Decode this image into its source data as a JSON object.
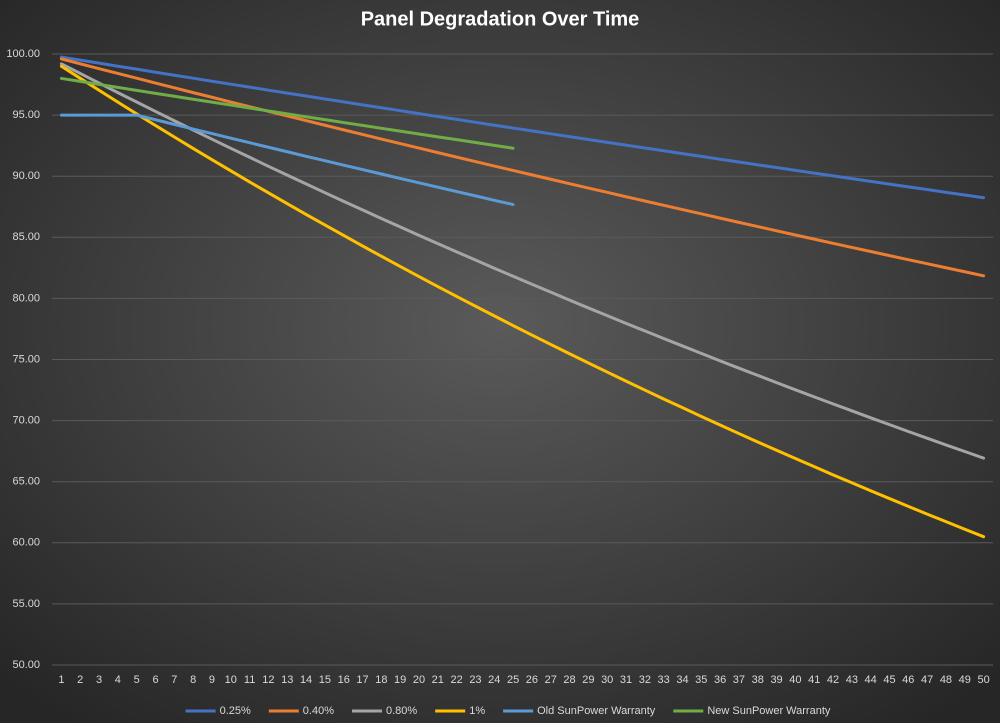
{
  "chart_data": {
    "type": "line",
    "title": "Panel Degradation Over Time",
    "categories": [
      1,
      2,
      3,
      4,
      5,
      6,
      7,
      8,
      9,
      10,
      11,
      12,
      13,
      14,
      15,
      16,
      17,
      18,
      19,
      20,
      21,
      22,
      23,
      24,
      25,
      26,
      27,
      28,
      29,
      30,
      31,
      32,
      33,
      34,
      35,
      36,
      37,
      38,
      39,
      40,
      41,
      42,
      43,
      44,
      45,
      46,
      47,
      48,
      49,
      50
    ],
    "ylim": [
      50,
      100
    ],
    "yticks": [
      {
        "value": 50,
        "label": "50.00"
      },
      {
        "value": 55,
        "label": "55.00"
      },
      {
        "value": 60,
        "label": "60.00"
      },
      {
        "value": 65,
        "label": "65.00"
      },
      {
        "value": 70,
        "label": "70.00"
      },
      {
        "value": 75,
        "label": "75.00"
      },
      {
        "value": 80,
        "label": "80.00"
      },
      {
        "value": 85,
        "label": "85.00"
      },
      {
        "value": 90,
        "label": "90.00"
      },
      {
        "value": 95,
        "label": "95.00"
      },
      {
        "value": 100,
        "label": "100.00"
      }
    ],
    "grid": true,
    "legend": "bottom",
    "series": [
      {
        "name": "0.25%",
        "color": "#4472c4",
        "values": [
          99.75,
          99.5,
          99.25,
          99.0,
          98.76,
          98.51,
          98.26,
          98.02,
          97.77,
          97.53,
          97.29,
          97.04,
          96.8,
          96.56,
          96.32,
          96.08,
          95.84,
          95.6,
          95.36,
          95.12,
          94.88,
          94.65,
          94.41,
          94.17,
          93.94,
          93.71,
          93.47,
          93.24,
          93.0,
          92.77,
          92.54,
          92.31,
          92.08,
          91.85,
          91.62,
          91.39,
          91.16,
          90.93,
          90.71,
          90.48,
          90.25,
          90.03,
          89.8,
          89.58,
          89.35,
          89.13,
          88.91,
          88.68,
          88.46,
          88.24
        ]
      },
      {
        "name": "0.40%",
        "color": "#ed7d31",
        "values": [
          99.6,
          99.2,
          98.8,
          98.41,
          98.02,
          97.62,
          97.23,
          96.84,
          96.46,
          96.07,
          95.69,
          95.31,
          94.93,
          94.55,
          94.17,
          93.79,
          93.42,
          93.04,
          92.67,
          92.3,
          91.93,
          91.56,
          91.2,
          90.83,
          90.47,
          90.11,
          89.75,
          89.39,
          89.03,
          88.68,
          88.32,
          87.97,
          87.62,
          87.27,
          86.92,
          86.57,
          86.22,
          85.88,
          85.53,
          85.19,
          84.85,
          84.51,
          84.17,
          83.84,
          83.5,
          83.17,
          82.84,
          82.51,
          82.18,
          81.85
        ]
      },
      {
        "name": "0.80%",
        "color": "#a5a5a5",
        "values": [
          99.2,
          98.41,
          97.62,
          96.84,
          96.07,
          95.3,
          94.54,
          93.78,
          93.03,
          92.28,
          91.55,
          90.81,
          90.09,
          89.37,
          88.65,
          87.94,
          87.24,
          86.54,
          85.85,
          85.16,
          84.48,
          83.81,
          83.14,
          82.47,
          81.81,
          81.16,
          80.51,
          79.86,
          79.22,
          78.59,
          77.96,
          77.34,
          76.72,
          76.11,
          75.5,
          74.89,
          74.29,
          73.7,
          73.11,
          72.52,
          71.94,
          71.37,
          70.8,
          70.23,
          69.67,
          69.11,
          68.56,
          68.01,
          67.47,
          66.93
        ]
      },
      {
        "name": "1%",
        "color": "#ffc000",
        "values": [
          99.0,
          98.01,
          97.03,
          96.06,
          95.1,
          94.15,
          93.21,
          92.27,
          91.35,
          90.44,
          89.53,
          88.64,
          87.75,
          86.87,
          86.01,
          85.15,
          84.29,
          83.45,
          82.62,
          81.79,
          80.97,
          80.16,
          79.36,
          78.57,
          77.78,
          77.0,
          76.23,
          75.47,
          74.72,
          73.97,
          73.23,
          72.5,
          71.77,
          71.06,
          70.34,
          69.64,
          68.94,
          68.25,
          67.57,
          66.9,
          66.23,
          65.56,
          64.91,
          64.26,
          63.62,
          62.98,
          62.35,
          61.73,
          61.11,
          60.5
        ]
      },
      {
        "name": "Old SunPower Warranty",
        "color": "#5b9bd5",
        "values": [
          95,
          95,
          95,
          95,
          95,
          94.62,
          94.24,
          93.86,
          93.49,
          93.11,
          92.74,
          92.37,
          92.0,
          91.63,
          91.27,
          90.9,
          90.54,
          90.18,
          89.82,
          89.46,
          89.1,
          88.74,
          88.39,
          88.03,
          87.68,
          null,
          null,
          null,
          null,
          null,
          null,
          null,
          null,
          null,
          null,
          null,
          null,
          null,
          null,
          null,
          null,
          null,
          null,
          null,
          null,
          null,
          null,
          null,
          null,
          null
        ]
      },
      {
        "name": "New SunPower Warranty",
        "color": "#70ad47",
        "values": [
          98.0,
          97.76,
          97.51,
          97.27,
          97.02,
          96.78,
          96.54,
          96.3,
          96.06,
          95.82,
          95.58,
          95.34,
          95.1,
          94.86,
          94.63,
          94.39,
          94.16,
          93.92,
          93.69,
          93.45,
          93.22,
          92.99,
          92.76,
          92.52,
          92.29,
          null,
          null,
          null,
          null,
          null,
          null,
          null,
          null,
          null,
          null,
          null,
          null,
          null,
          null,
          null,
          null,
          null,
          null,
          null,
          null,
          null,
          null,
          null,
          null,
          null
        ]
      }
    ]
  }
}
